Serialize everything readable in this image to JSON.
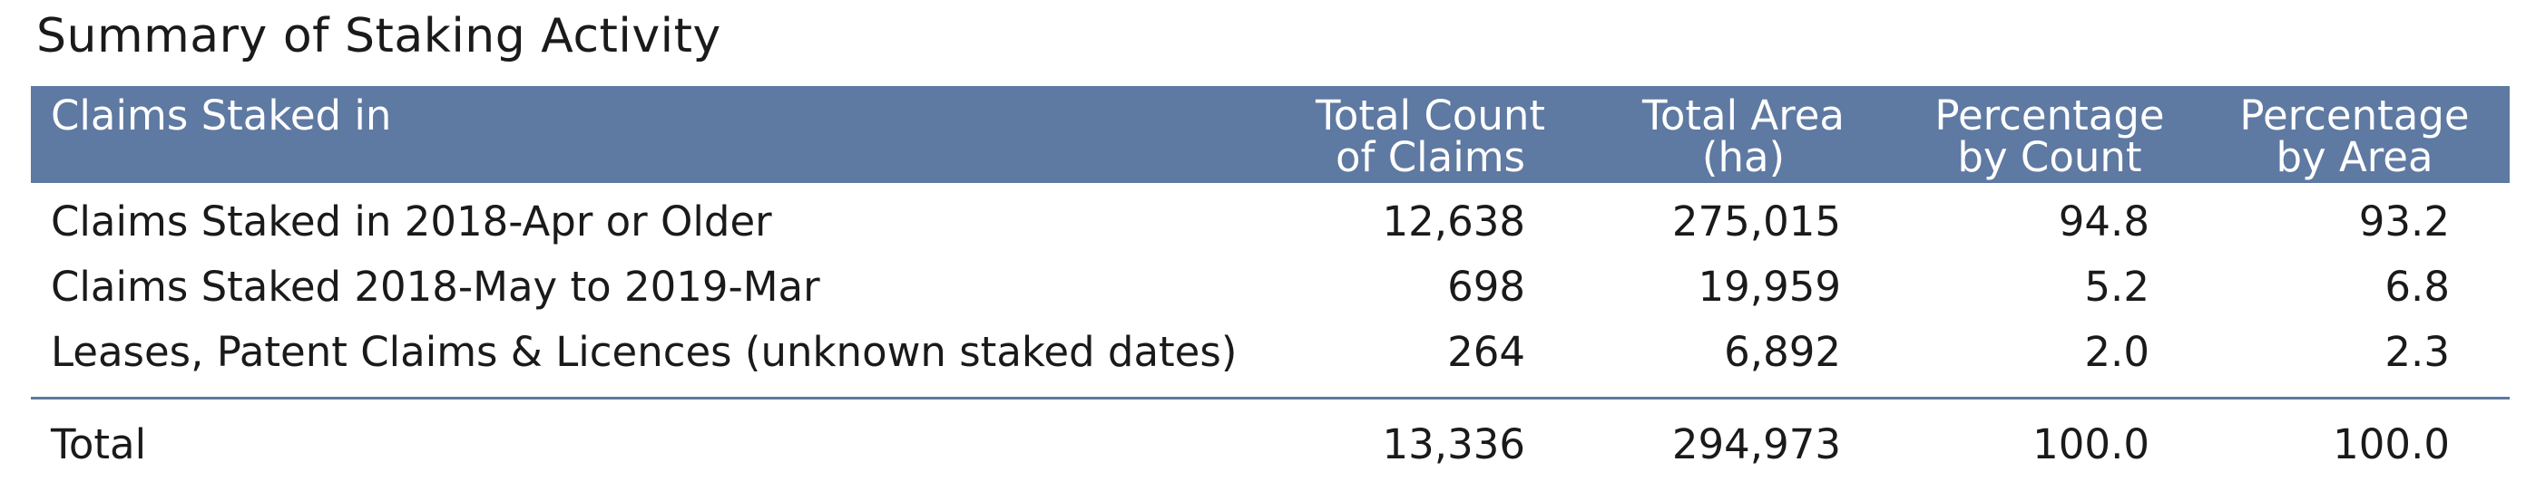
{
  "title": "Summary of Staking Activity",
  "table": {
    "headers": {
      "label": "Claims Staked in",
      "total_count": [
        "Total Count",
        "of Claims"
      ],
      "total_area": [
        "Total Area",
        "(ha)"
      ],
      "pct_count": [
        "Percentage",
        "by Count"
      ],
      "pct_area": [
        "Percentage",
        "by Area"
      ]
    },
    "rows": [
      {
        "label": "Claims Staked in 2018-Apr or Older",
        "total_count": "12,638",
        "total_area": "275,015",
        "pct_count": "94.8",
        "pct_area": "93.2"
      },
      {
        "label": "Claims Staked 2018-May to 2019-Mar",
        "total_count": "698",
        "total_area": "19,959",
        "pct_count": "5.2",
        "pct_area": "6.8"
      },
      {
        "label": "Leases, Patent Claims & Licences (unknown staked dates)",
        "total_count": "264",
        "total_area": "6,892",
        "pct_count": "2.0",
        "pct_area": "2.3"
      }
    ],
    "total": {
      "label": "Total",
      "total_count": "13,336",
      "total_area": "294,973",
      "pct_count": "100.0",
      "pct_area": "100.0"
    }
  },
  "colors": {
    "header_bg": "#5e79a2",
    "header_text": "#ffffff",
    "body_text": "#1a1a1a",
    "rule": "#5e79a2"
  }
}
